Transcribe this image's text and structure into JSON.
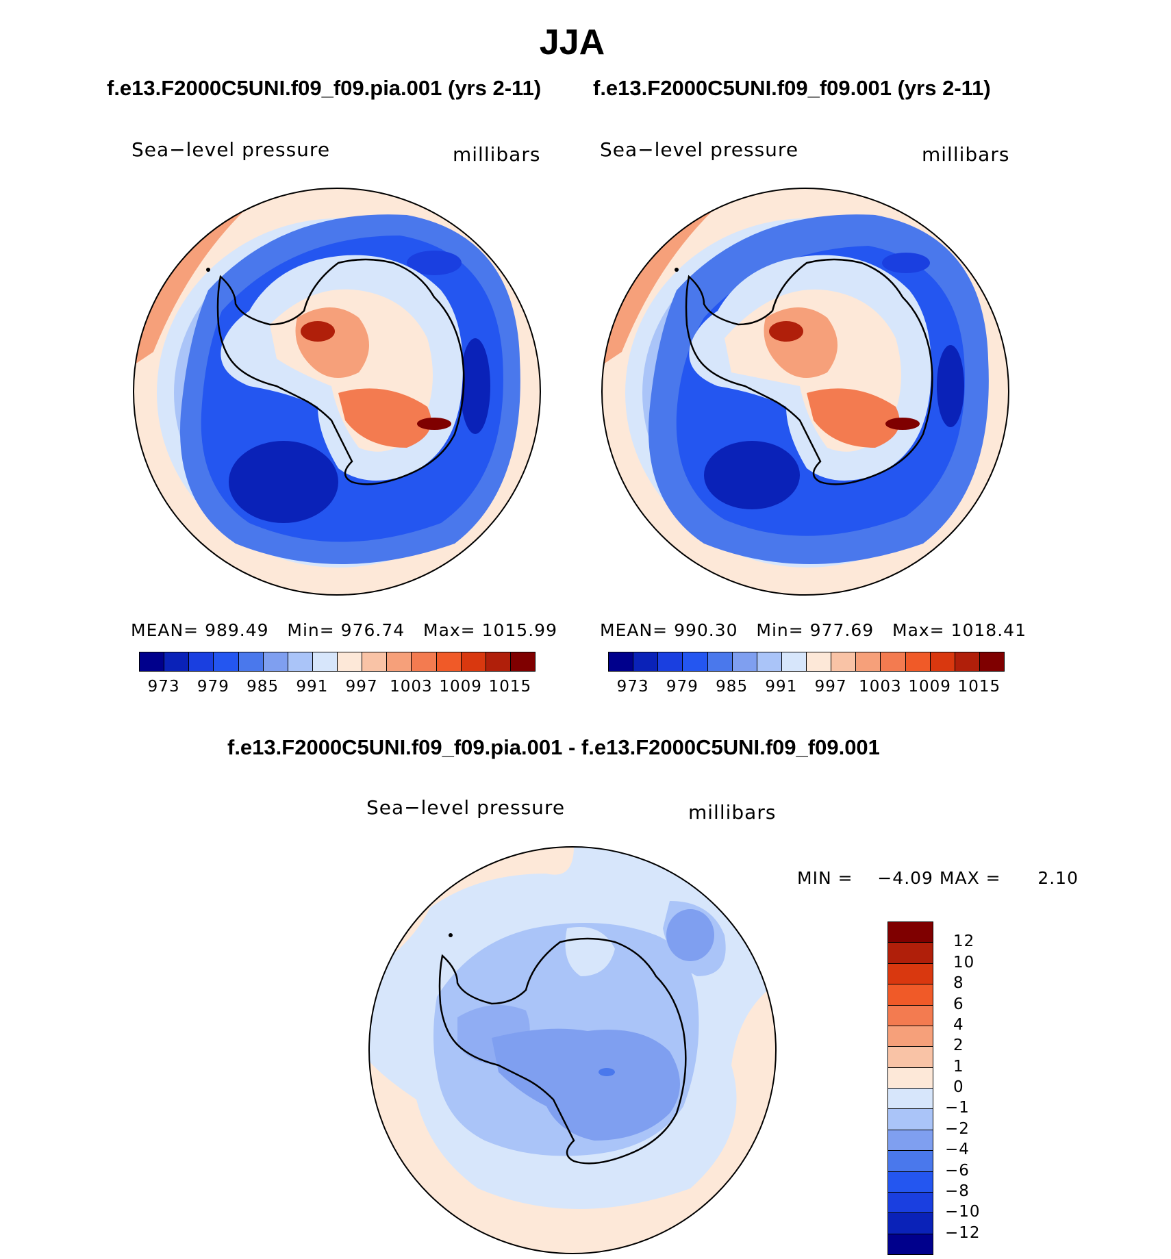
{
  "title": "JJA",
  "panels": [
    {
      "case_title": "f.e13.F2000C5UNI.f09_f09.pia.001 (yrs 2-11)",
      "variable": "Sea−level pressure",
      "units": "millibars",
      "mean_label": "MEAN=",
      "mean": "989.49",
      "min_label": "Min=",
      "min": "976.74",
      "max_label": "Max=",
      "max": "1015.99"
    },
    {
      "case_title": "f.e13.F2000C5UNI.f09_f09.001 (yrs 2-11)",
      "variable": "Sea−level pressure",
      "units": "millibars",
      "mean_label": "MEAN=",
      "mean": "990.30",
      "min_label": "Min=",
      "min": "977.69",
      "max_label": "Max=",
      "max": "1018.41"
    }
  ],
  "abs_colorbar": {
    "ticks": [
      "973",
      "979",
      "985",
      "991",
      "997",
      "1003",
      "1009",
      "1015"
    ],
    "colors": [
      "#00008c",
      "#0a22b8",
      "#1a3fe0",
      "#2456f0",
      "#4a78ec",
      "#7f9ff0",
      "#aac4f8",
      "#d7e6fb",
      "#fde8d8",
      "#f9c3a6",
      "#f6a07a",
      "#f37b50",
      "#f05a28",
      "#d9380f",
      "#b01f0a",
      "#7f0000"
    ]
  },
  "difference": {
    "title": "f.e13.F2000C5UNI.f09_f09.pia.001 - f.e13.F2000C5UNI.f09_f09.001",
    "variable": "Sea−level pressure",
    "units": "millibars",
    "min_label": "MIN =",
    "min": "−4.09",
    "max_label": "MAX =",
    "max": "2.10",
    "colorbar_ticks": [
      "12",
      "10",
      "8",
      "6",
      "4",
      "2",
      "1",
      "0",
      "−1",
      "−2",
      "−4",
      "−6",
      "−8",
      "−10",
      "−12"
    ],
    "colorbar_colors": [
      "#7f0000",
      "#b01f0a",
      "#d9380f",
      "#f05a28",
      "#f37b50",
      "#f6a07a",
      "#f9c3a6",
      "#fde8d8",
      "#d7e6fb",
      "#aac4f8",
      "#7f9ff0",
      "#4a78ec",
      "#2456f0",
      "#1a3fe0",
      "#0a22b8",
      "#00008c"
    ]
  }
}
